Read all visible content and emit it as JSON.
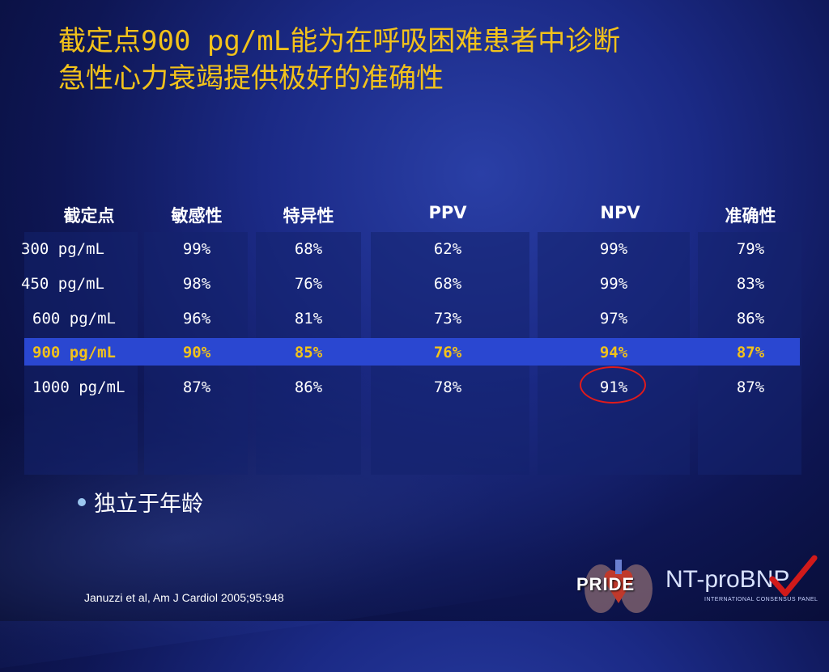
{
  "title": {
    "line1": "截定点900 pg/mL能为在呼吸困难患者中诊断",
    "line2": "急性心力衰竭提供极好的准确性"
  },
  "table": {
    "headers": [
      "截定点",
      "敏感性",
      "特异性",
      "PPV",
      "NPV",
      "准确性"
    ],
    "rows": [
      [
        "300 pg/mL",
        "99%",
        "68%",
        "62%",
        "99%",
        "79%"
      ],
      [
        "450 pg/mL",
        "98%",
        "76%",
        "68%",
        "99%",
        "83%"
      ],
      [
        "600 pg/mL",
        "96%",
        "81%",
        "73%",
        "97%",
        "86%"
      ],
      [
        "900 pg/mL",
        "90%",
        "85%",
        "76%",
        "94%",
        "87%"
      ],
      [
        "1000 pg/mL",
        "87%",
        "86%",
        "78%",
        "91%",
        "87%"
      ]
    ],
    "highlighted_row": 3,
    "circled_value": "91%"
  },
  "bullet": "独立于年龄",
  "citation": "Januzzi et al, Am J Cardiol 2005;95:948",
  "logo": {
    "pride": "PRIDE",
    "ntprobnp": "NT-proBNP",
    "subtitle": "INTERNATIONAL CONSENSUS PANEL"
  },
  "colors": {
    "title": "#f2c21b",
    "highlight_row": "#2a47d1",
    "circle": "#e01b1b",
    "background": "#1b2a86"
  }
}
